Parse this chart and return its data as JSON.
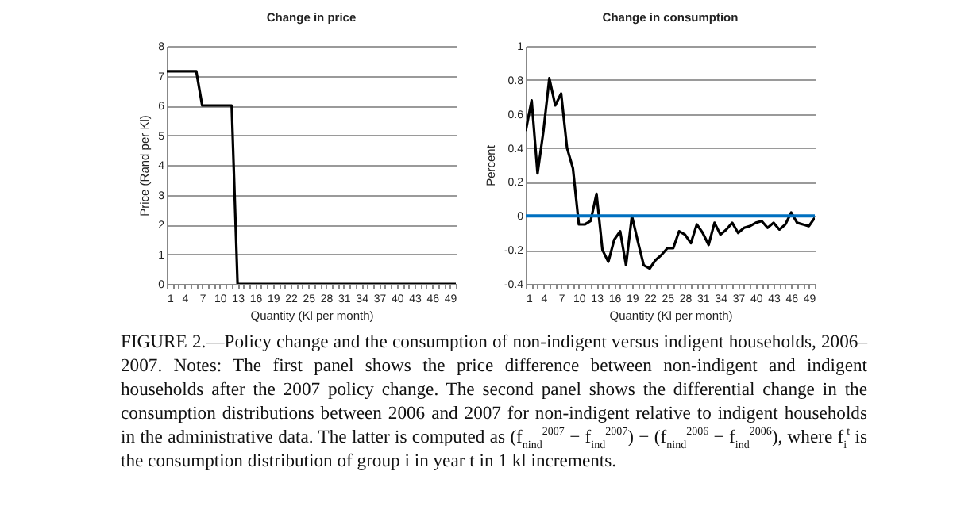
{
  "chart_data": [
    {
      "type": "line",
      "title": "Change in price",
      "xlabel": "Quantity (Kl per month)",
      "ylabel": "Price (Rand per Kl)",
      "x": [
        1,
        2,
        3,
        4,
        5,
        6,
        7,
        8,
        9,
        10,
        11,
        12,
        13,
        14,
        15,
        16,
        17,
        18,
        19,
        20,
        21,
        22,
        23,
        24,
        25,
        26,
        27,
        28,
        29,
        30,
        31,
        32,
        33,
        34,
        35,
        36,
        37,
        38,
        39,
        40,
        41,
        42,
        43,
        44,
        45,
        46,
        47,
        48,
        49,
        50
      ],
      "series": [
        {
          "color": "#000000",
          "values": [
            7.15,
            7.15,
            7.15,
            7.15,
            7.15,
            7.15,
            6,
            6,
            6,
            6,
            6,
            6,
            0,
            0,
            0,
            0,
            0,
            0,
            0,
            0,
            0,
            0,
            0,
            0,
            0,
            0,
            0,
            0,
            0,
            0,
            0,
            0,
            0,
            0,
            0,
            0,
            0,
            0,
            0,
            0,
            0,
            0,
            0,
            0,
            0,
            0,
            0,
            0,
            0,
            0
          ]
        }
      ],
      "xlim": [
        1,
        50
      ],
      "xticks": [
        1,
        {
          "value": 2,
          "label": null
        },
        {
          "value": 3,
          "label": null
        },
        4,
        {
          "value": 5,
          "label": null
        },
        {
          "value": 6,
          "label": null
        },
        7,
        {
          "value": 8,
          "label": null
        },
        {
          "value": 9,
          "label": null
        },
        10,
        {
          "value": 11,
          "label": null
        },
        {
          "value": 12,
          "label": null
        },
        13,
        {
          "value": 14,
          "label": null
        },
        {
          "value": 15,
          "label": null
        },
        16,
        {
          "value": 17,
          "label": null
        },
        {
          "value": 18,
          "label": null
        },
        19,
        {
          "value": 20,
          "label": null
        },
        {
          "value": 21,
          "label": null
        },
        22,
        {
          "value": 23,
          "label": null
        },
        {
          "value": 24,
          "label": null
        },
        25,
        {
          "value": 26,
          "label": null
        },
        {
          "value": 27,
          "label": null
        },
        28,
        {
          "value": 29,
          "label": null
        },
        {
          "value": 30,
          "label": null
        },
        31,
        {
          "value": 32,
          "label": null
        },
        {
          "value": 33,
          "label": null
        },
        34,
        {
          "value": 35,
          "label": null
        },
        {
          "value": 36,
          "label": null
        },
        37,
        {
          "value": 38,
          "label": null
        },
        {
          "value": 39,
          "label": null
        },
        40,
        {
          "value": 41,
          "label": null
        },
        {
          "value": 42,
          "label": null
        },
        43,
        {
          "value": 44,
          "label": null
        },
        {
          "value": 45,
          "label": null
        },
        46,
        {
          "value": 47,
          "label": null
        },
        {
          "value": 48,
          "label": null
        },
        49,
        {
          "value": 50,
          "label": null
        }
      ],
      "ylim": [
        0,
        8
      ],
      "yticks": [
        0,
        1,
        2,
        3,
        4,
        5,
        6,
        7,
        8
      ],
      "grid": "y",
      "annotations": [
        "FIGURE 2.—Policy change and the consumption of non-indigent versus indigent households, 2006–2007. Notes: The first panel shows the price difference between non-indigent and indigent households after the 2007 policy change. The second panel shows the differential change in the consumption distributions between 2006 and 2007 for non-indigent relative to indigent households in the administrative data. The latter is computed as (f$_{nind}$$^{2007}$ − f$_{ind}$$^{2007}$) − (f$_{nind}$$^{2006}$ − f$_{ind}$$^{2006}$), where f$_{i}$$^{t}$ is the consumption distribution of group i in year t in 1 kl increments."
      ]
    },
    {
      "type": "line",
      "title": "Change in consumption",
      "xlabel": "Quantity (Kl per month)",
      "ylabel": "Percent",
      "x": [
        1,
        2,
        3,
        4,
        5,
        6,
        7,
        8,
        9,
        10,
        11,
        12,
        13,
        14,
        15,
        16,
        17,
        18,
        19,
        20,
        21,
        22,
        23,
        24,
        25,
        26,
        27,
        28,
        29,
        30,
        31,
        32,
        33,
        34,
        35,
        36,
        37,
        38,
        39,
        40,
        41,
        42,
        43,
        44,
        45,
        46,
        47,
        48,
        49,
        50
      ],
      "series": [
        {
          "color": "#000000",
          "values": [
            0.5,
            0.68,
            0.25,
            0.5,
            0.81,
            0.65,
            0.72,
            0.4,
            0.28,
            -0.05,
            -0.05,
            -0.03,
            0.13,
            -0.2,
            -0.27,
            -0.14,
            -0.09,
            -0.29,
            0,
            -0.15,
            -0.29,
            -0.31,
            -0.26,
            -0.23,
            -0.19,
            -0.19,
            -0.09,
            -0.11,
            -0.16,
            -0.05,
            -0.1,
            -0.17,
            -0.04,
            -0.11,
            -0.08,
            -0.04,
            -0.1,
            -0.07,
            -0.06,
            -0.04,
            -0.03,
            -0.07,
            -0.04,
            -0.08,
            -0.05,
            0.02,
            -0.04,
            -0.05,
            -0.06,
            -0.01
          ]
        }
      ],
      "xlim": [
        1,
        50
      ],
      "xticks": [
        1,
        {
          "value": 2,
          "label": null
        },
        {
          "value": 3,
          "label": null
        },
        4,
        {
          "value": 5,
          "label": null
        },
        {
          "value": 6,
          "label": null
        },
        7,
        {
          "value": 8,
          "label": null
        },
        {
          "value": 9,
          "label": null
        },
        10,
        {
          "value": 11,
          "label": null
        },
        {
          "value": 12,
          "label": null
        },
        13,
        {
          "value": 14,
          "label": null
        },
        {
          "value": 15,
          "label": null
        },
        16,
        {
          "value": 17,
          "label": null
        },
        {
          "value": 18,
          "label": null
        },
        19,
        {
          "value": 20,
          "label": null
        },
        {
          "value": 21,
          "label": null
        },
        22,
        {
          "value": 23,
          "label": null
        },
        {
          "value": 24,
          "label": null
        },
        25,
        {
          "value": 26,
          "label": null
        },
        {
          "value": 27,
          "label": null
        },
        28,
        {
          "value": 29,
          "label": null
        },
        {
          "value": 30,
          "label": null
        },
        31,
        {
          "value": 32,
          "label": null
        },
        {
          "value": 33,
          "label": null
        },
        34,
        {
          "value": 35,
          "label": null
        },
        {
          "value": 36,
          "label": null
        },
        37,
        {
          "value": 38,
          "label": null
        },
        {
          "value": 39,
          "label": null
        },
        40,
        {
          "value": 41,
          "label": null
        },
        {
          "value": 42,
          "label": null
        },
        43,
        {
          "value": 44,
          "label": null
        },
        {
          "value": 45,
          "label": null
        },
        46,
        {
          "value": 47,
          "label": null
        },
        {
          "value": 48,
          "label": null
        },
        49,
        {
          "value": 50,
          "label": null
        }
      ],
      "ylim": [
        -0.4,
        1
      ],
      "yticks": [
        -0.4,
        -0.2,
        0,
        0.2,
        0.4,
        0.6,
        0.8,
        1
      ],
      "grid": "y",
      "ref_lines": [
        {
          "axis": "y",
          "value": 0,
          "color": "#0070c0"
        }
      ]
    }
  ]
}
